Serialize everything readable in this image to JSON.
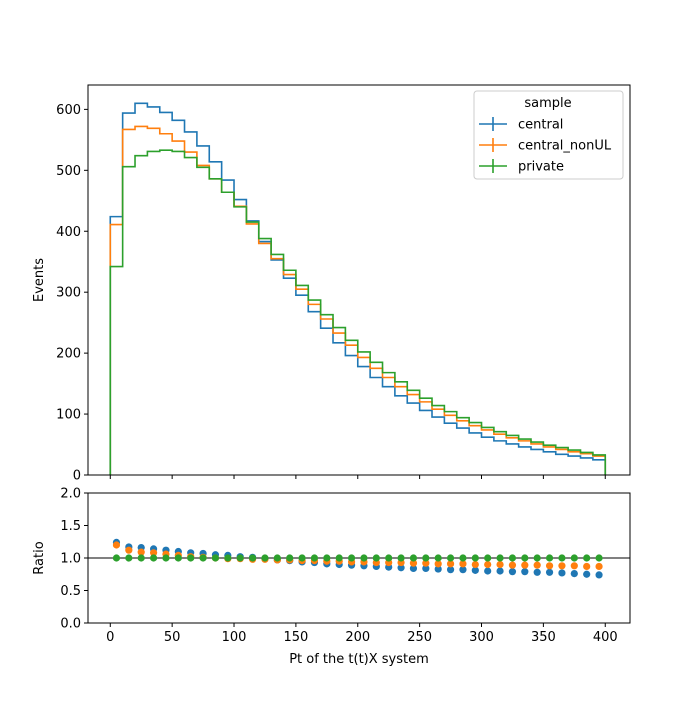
{
  "chart_data": {
    "type": "step",
    "xlabel": "Pt of the t(t)X system",
    "main": {
      "ylabel": "Events",
      "ylim": [
        0,
        640
      ],
      "yticks": [
        0,
        100,
        200,
        300,
        400,
        500,
        600
      ]
    },
    "ratio": {
      "ylabel": "Ratio",
      "ylim": [
        0.0,
        2.0
      ],
      "yticks": [
        "0.0",
        "0.5",
        "1.0",
        "1.5",
        "2.0"
      ],
      "reference_line": 1.0
    },
    "xlim": [
      -18,
      420
    ],
    "xticks": [
      0,
      50,
      100,
      150,
      200,
      250,
      300,
      350,
      400
    ],
    "bin_edges": [
      0,
      10,
      20,
      30,
      40,
      50,
      60,
      70,
      80,
      90,
      100,
      110,
      120,
      130,
      140,
      150,
      160,
      170,
      180,
      190,
      200,
      210,
      220,
      230,
      240,
      250,
      260,
      270,
      280,
      290,
      300,
      310,
      320,
      330,
      340,
      350,
      360,
      370,
      380,
      390,
      400
    ],
    "legend": {
      "title": "sample",
      "position": "upper right"
    },
    "series": [
      {
        "name": "central",
        "color": "#1f77b4",
        "values": [
          424,
          594,
          610,
          604,
          595,
          582,
          563,
          540,
          514,
          484,
          452,
          417,
          383,
          353,
          323,
          295,
          268,
          241,
          217,
          196,
          178,
          160,
          145,
          130,
          118,
          106,
          95,
          85,
          77,
          69,
          62,
          56,
          51,
          46,
          42,
          38,
          34,
          31,
          28,
          25
        ],
        "ratio": [
          1.24,
          1.17,
          1.16,
          1.14,
          1.12,
          1.1,
          1.08,
          1.07,
          1.05,
          1.04,
          1.02,
          1.01,
          0.99,
          0.97,
          0.96,
          0.94,
          0.93,
          0.91,
          0.9,
          0.89,
          0.88,
          0.87,
          0.86,
          0.85,
          0.84,
          0.84,
          0.83,
          0.82,
          0.82,
          0.81,
          0.8,
          0.8,
          0.79,
          0.79,
          0.78,
          0.78,
          0.77,
          0.76,
          0.75,
          0.74
        ]
      },
      {
        "name": "central_nonUL",
        "color": "#ff7f0e",
        "values": [
          411,
          567,
          572,
          569,
          560,
          548,
          530,
          508,
          486,
          464,
          441,
          412,
          380,
          355,
          329,
          305,
          280,
          256,
          233,
          213,
          193,
          175,
          160,
          145,
          132,
          120,
          108,
          98,
          89,
          81,
          74,
          67,
          61,
          56,
          51,
          46,
          42,
          38,
          35,
          31
        ],
        "ratio": [
          1.2,
          1.12,
          1.09,
          1.08,
          1.06,
          1.04,
          1.02,
          1.01,
          1.0,
          0.99,
          0.99,
          0.98,
          0.98,
          0.97,
          0.97,
          0.96,
          0.96,
          0.95,
          0.95,
          0.94,
          0.94,
          0.93,
          0.93,
          0.93,
          0.92,
          0.92,
          0.91,
          0.91,
          0.91,
          0.9,
          0.9,
          0.9,
          0.89,
          0.89,
          0.89,
          0.88,
          0.88,
          0.88,
          0.87,
          0.87
        ]
      },
      {
        "name": "private",
        "color": "#2ca02c",
        "values": [
          342,
          506,
          524,
          531,
          533,
          531,
          521,
          505,
          486,
          464,
          440,
          415,
          388,
          362,
          336,
          311,
          287,
          263,
          242,
          221,
          202,
          185,
          168,
          153,
          139,
          126,
          114,
          104,
          94,
          86,
          78,
          71,
          65,
          59,
          54,
          49,
          45,
          41,
          37,
          33
        ],
        "ratio": [
          1.0,
          1.0,
          1.0,
          1.0,
          1.0,
          1.0,
          1.0,
          1.0,
          1.0,
          1.0,
          1.0,
          1.0,
          1.0,
          1.0,
          1.0,
          1.0,
          1.0,
          1.0,
          1.0,
          1.0,
          1.0,
          1.0,
          1.0,
          1.0,
          1.0,
          1.0,
          1.0,
          1.0,
          1.0,
          1.0,
          1.0,
          1.0,
          1.0,
          1.0,
          1.0,
          1.0,
          1.0,
          1.0,
          1.0,
          1.0
        ]
      }
    ]
  }
}
